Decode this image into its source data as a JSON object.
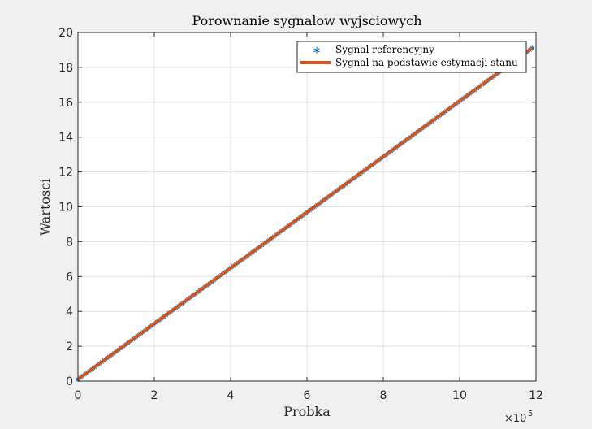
{
  "chart_data": {
    "type": "line",
    "title": "Porownanie sygnalow wyjsciowych",
    "xlabel": "Probka",
    "ylabel": "Wartosci",
    "x_exponent_label": "×10",
    "x_exponent_power": "5",
    "xlim": [
      0,
      1200000
    ],
    "ylim": [
      0,
      20
    ],
    "xticks": [
      0,
      200000,
      400000,
      600000,
      800000,
      1000000,
      1200000
    ],
    "xtick_labels": [
      "0",
      "2",
      "4",
      "6",
      "8",
      "10",
      "12"
    ],
    "yticks": [
      0,
      2,
      4,
      6,
      8,
      10,
      12,
      14,
      16,
      18,
      20
    ],
    "ytick_labels": [
      "0",
      "2",
      "4",
      "6",
      "8",
      "10",
      "12",
      "14",
      "16",
      "18",
      "20"
    ],
    "grid": true,
    "legend_position": "top-right",
    "series": [
      {
        "name": "Sygnal referencyjny",
        "style": "markers",
        "marker": "*",
        "color": "#0072bd",
        "x": [
          0,
          1190000
        ],
        "y": [
          0.1,
          19.1
        ]
      },
      {
        "name": "Sygnal na podstawie estymacji stanu",
        "style": "line",
        "color": "#d95319",
        "x": [
          0,
          1190000
        ],
        "y": [
          0.1,
          19.1
        ]
      }
    ]
  }
}
